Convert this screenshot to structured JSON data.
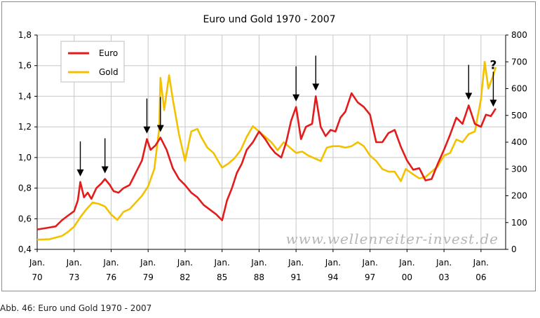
{
  "caption": "Abb. 46: Euro und Gold 1970 - 2007",
  "watermark": "www.wellenreiter-invest.de",
  "annotation": "?",
  "colors": {
    "euro": "#e31b1b",
    "gold": "#f2c200",
    "grid": "#c8c8c8",
    "axis": "#000000"
  },
  "chart_data": {
    "type": "line",
    "title": "Euro und Gold 1970 - 2007",
    "left_axis": {
      "min": 0.4,
      "max": 1.8,
      "ticks": [
        "0,4",
        "0,6",
        "0,8",
        "1,0",
        "1,2",
        "1,4",
        "1,6",
        "1,8"
      ]
    },
    "right_axis": {
      "min": 0,
      "max": 800,
      "ticks": [
        "0",
        "100",
        "200",
        "300",
        "400",
        "500",
        "600",
        "700",
        "800"
      ]
    },
    "x_range": [
      1970,
      2008
    ],
    "x_ticks": [
      {
        "year": 1970,
        "top": "Jan.",
        "bottom": "70"
      },
      {
        "year": 1973,
        "top": "Jan.",
        "bottom": "73"
      },
      {
        "year": 1976,
        "top": "Jan.",
        "bottom": "76"
      },
      {
        "year": 1979,
        "top": "Jan.",
        "bottom": "79"
      },
      {
        "year": 1982,
        "top": "Jan.",
        "bottom": "82"
      },
      {
        "year": 1985,
        "top": "Jan.",
        "bottom": "85"
      },
      {
        "year": 1988,
        "top": "Jan.",
        "bottom": "88"
      },
      {
        "year": 1991,
        "top": "Jan.",
        "bottom": "91"
      },
      {
        "year": 1994,
        "top": "Jan.",
        "bottom": "94"
      },
      {
        "year": 1997,
        "top": "Jan.",
        "bottom": "97"
      },
      {
        "year": 2000,
        "top": "Jan.",
        "bottom": "00"
      },
      {
        "year": 2003,
        "top": "Jan.",
        "bottom": "03"
      },
      {
        "year": 2006,
        "top": "Jan.",
        "bottom": "06"
      }
    ],
    "legend": {
      "position": "top-left",
      "entries": [
        "Euro",
        "Gold"
      ]
    },
    "series": [
      {
        "name": "Euro",
        "axis": "left",
        "points": [
          [
            1970.0,
            0.53
          ],
          [
            1970.8,
            0.54
          ],
          [
            1971.5,
            0.55
          ],
          [
            1972.0,
            0.59
          ],
          [
            1972.5,
            0.62
          ],
          [
            1973.0,
            0.65
          ],
          [
            1973.3,
            0.72
          ],
          [
            1973.5,
            0.84
          ],
          [
            1973.8,
            0.74
          ],
          [
            1974.1,
            0.77
          ],
          [
            1974.4,
            0.73
          ],
          [
            1974.8,
            0.8
          ],
          [
            1975.2,
            0.83
          ],
          [
            1975.5,
            0.86
          ],
          [
            1975.9,
            0.82
          ],
          [
            1976.2,
            0.78
          ],
          [
            1976.6,
            0.77
          ],
          [
            1977.0,
            0.8
          ],
          [
            1977.5,
            0.82
          ],
          [
            1978.0,
            0.9
          ],
          [
            1978.5,
            0.98
          ],
          [
            1978.9,
            1.12
          ],
          [
            1979.2,
            1.05
          ],
          [
            1979.6,
            1.08
          ],
          [
            1980.0,
            1.13
          ],
          [
            1980.5,
            1.05
          ],
          [
            1981.0,
            0.93
          ],
          [
            1981.5,
            0.86
          ],
          [
            1982.0,
            0.82
          ],
          [
            1982.5,
            0.77
          ],
          [
            1983.0,
            0.74
          ],
          [
            1983.5,
            0.69
          ],
          [
            1984.0,
            0.66
          ],
          [
            1984.5,
            0.63
          ],
          [
            1985.0,
            0.59
          ],
          [
            1985.4,
            0.72
          ],
          [
            1985.8,
            0.8
          ],
          [
            1986.2,
            0.9
          ],
          [
            1986.6,
            0.96
          ],
          [
            1987.0,
            1.05
          ],
          [
            1987.5,
            1.1
          ],
          [
            1988.0,
            1.17
          ],
          [
            1988.5,
            1.12
          ],
          [
            1988.9,
            1.07
          ],
          [
            1989.3,
            1.03
          ],
          [
            1989.8,
            1.0
          ],
          [
            1990.2,
            1.1
          ],
          [
            1990.6,
            1.24
          ],
          [
            1991.0,
            1.33
          ],
          [
            1991.4,
            1.12
          ],
          [
            1991.8,
            1.2
          ],
          [
            1992.3,
            1.22
          ],
          [
            1992.6,
            1.4
          ],
          [
            1993.0,
            1.2
          ],
          [
            1993.4,
            1.14
          ],
          [
            1993.8,
            1.18
          ],
          [
            1994.2,
            1.17
          ],
          [
            1994.6,
            1.26
          ],
          [
            1995.0,
            1.3
          ],
          [
            1995.5,
            1.42
          ],
          [
            1996.0,
            1.36
          ],
          [
            1996.5,
            1.33
          ],
          [
            1997.0,
            1.28
          ],
          [
            1997.5,
            1.1
          ],
          [
            1998.0,
            1.1
          ],
          [
            1998.5,
            1.16
          ],
          [
            1999.0,
            1.18
          ],
          [
            1999.5,
            1.07
          ],
          [
            2000.0,
            0.98
          ],
          [
            2000.5,
            0.92
          ],
          [
            2001.0,
            0.93
          ],
          [
            2001.5,
            0.85
          ],
          [
            2002.0,
            0.86
          ],
          [
            2002.5,
            0.96
          ],
          [
            2003.0,
            1.05
          ],
          [
            2003.5,
            1.15
          ],
          [
            2004.0,
            1.26
          ],
          [
            2004.5,
            1.22
          ],
          [
            2005.0,
            1.34
          ],
          [
            2005.5,
            1.22
          ],
          [
            2006.0,
            1.2
          ],
          [
            2006.4,
            1.28
          ],
          [
            2006.8,
            1.27
          ],
          [
            2007.2,
            1.32
          ]
        ]
      },
      {
        "name": "Gold",
        "axis": "right",
        "points": [
          [
            1970.0,
            36
          ],
          [
            1971.0,
            38
          ],
          [
            1972.0,
            50
          ],
          [
            1972.5,
            65
          ],
          [
            1973.0,
            85
          ],
          [
            1973.5,
            120
          ],
          [
            1974.0,
            150
          ],
          [
            1974.5,
            175
          ],
          [
            1975.0,
            170
          ],
          [
            1975.5,
            160
          ],
          [
            1976.0,
            130
          ],
          [
            1976.5,
            110
          ],
          [
            1977.0,
            140
          ],
          [
            1977.5,
            150
          ],
          [
            1978.0,
            175
          ],
          [
            1978.5,
            200
          ],
          [
            1979.0,
            235
          ],
          [
            1979.5,
            300
          ],
          [
            1979.9,
            450
          ],
          [
            1980.0,
            640
          ],
          [
            1980.3,
            520
          ],
          [
            1980.7,
            650
          ],
          [
            1981.0,
            560
          ],
          [
            1981.5,
            430
          ],
          [
            1982.0,
            330
          ],
          [
            1982.5,
            440
          ],
          [
            1983.0,
            450
          ],
          [
            1983.3,
            420
          ],
          [
            1983.8,
            380
          ],
          [
            1984.3,
            360
          ],
          [
            1984.8,
            320
          ],
          [
            1985.0,
            305
          ],
          [
            1985.5,
            320
          ],
          [
            1986.0,
            340
          ],
          [
            1986.5,
            370
          ],
          [
            1987.0,
            420
          ],
          [
            1987.5,
            460
          ],
          [
            1988.0,
            440
          ],
          [
            1988.5,
            420
          ],
          [
            1989.0,
            400
          ],
          [
            1989.5,
            370
          ],
          [
            1990.0,
            400
          ],
          [
            1990.5,
            380
          ],
          [
            1991.0,
            360
          ],
          [
            1991.5,
            365
          ],
          [
            1992.0,
            350
          ],
          [
            1992.5,
            340
          ],
          [
            1993.0,
            330
          ],
          [
            1993.5,
            380
          ],
          [
            1994.0,
            385
          ],
          [
            1994.5,
            385
          ],
          [
            1995.0,
            380
          ],
          [
            1995.5,
            385
          ],
          [
            1996.0,
            400
          ],
          [
            1996.5,
            385
          ],
          [
            1997.0,
            350
          ],
          [
            1997.5,
            330
          ],
          [
            1998.0,
            300
          ],
          [
            1998.5,
            290
          ],
          [
            1999.0,
            290
          ],
          [
            1999.5,
            255
          ],
          [
            1999.9,
            300
          ],
          [
            2000.5,
            280
          ],
          [
            2001.0,
            265
          ],
          [
            2001.5,
            270
          ],
          [
            2002.0,
            290
          ],
          [
            2002.5,
            310
          ],
          [
            2003.0,
            350
          ],
          [
            2003.5,
            360
          ],
          [
            2004.0,
            410
          ],
          [
            2004.5,
            400
          ],
          [
            2005.0,
            430
          ],
          [
            2005.5,
            440
          ],
          [
            2006.0,
            560
          ],
          [
            2006.3,
            700
          ],
          [
            2006.6,
            600
          ],
          [
            2007.0,
            650
          ],
          [
            2007.2,
            680
          ]
        ]
      }
    ],
    "arrows": [
      1973.5,
      1975.5,
      1978.9,
      1980.0,
      1991.0,
      1992.6,
      2005.0,
      2007.0
    ]
  }
}
